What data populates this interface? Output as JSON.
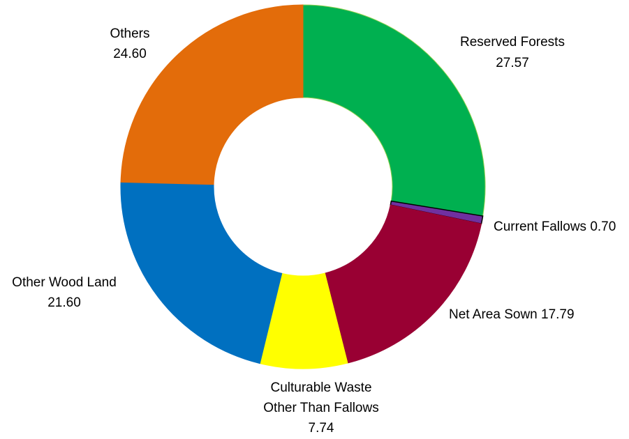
{
  "chart_data": {
    "type": "pie",
    "variant": "donut",
    "title": "",
    "categories": [
      "Reserved Forests",
      "Current Fallows",
      "Net Area Sown",
      "Culturable Waste Other Than Fallows",
      "Other Wood Land",
      "Others"
    ],
    "values": [
      27.57,
      0.7,
      17.79,
      7.74,
      21.6,
      24.6
    ],
    "colors": [
      "#00b050",
      "#7030a0",
      "#990033",
      "#ffff00",
      "#0070c0",
      "#e36c0a"
    ],
    "labels": {
      "reserved_forests": {
        "name": "Reserved Forests",
        "value": "27.57"
      },
      "current_fallows": {
        "text": "Current Fallows 0.70"
      },
      "net_area_sown": {
        "text": "Net Area Sown 17.79"
      },
      "culturable_waste": {
        "line1": "Culturable Waste",
        "line2": "Other Than Fallows",
        "value": "7.74"
      },
      "other_wood_land": {
        "name": "Other Wood Land",
        "value": "21.60"
      },
      "others": {
        "name": "Others",
        "value": "24.60"
      }
    },
    "legend": "none",
    "grid": false
  }
}
